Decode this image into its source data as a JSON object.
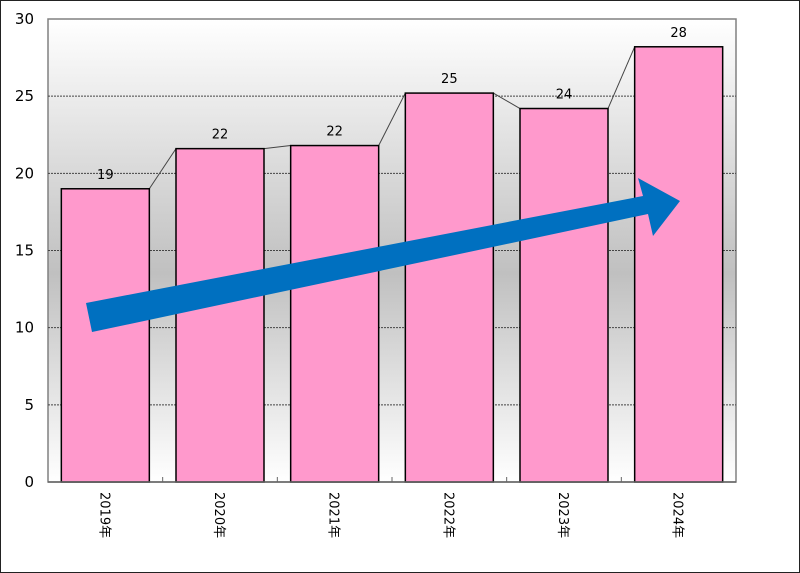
{
  "chart_data": {
    "type": "bar",
    "title": "",
    "xlabel": "",
    "ylabel": "",
    "categories": [
      "2019年",
      "2020年",
      "2021年",
      "2022年",
      "2023年",
      "2024年"
    ],
    "values": [
      19.0,
      21.6,
      21.8,
      25.2,
      24.2,
      28.2
    ],
    "data_labels": [
      "19",
      "22",
      "22",
      "25",
      "24",
      "28"
    ],
    "ylim": [
      0,
      30
    ],
    "yticks": [
      0,
      5,
      10,
      15,
      20,
      25,
      30
    ],
    "grid": "horizontal dashed",
    "legend": null,
    "series_lines": "connector lines between bar tops",
    "annotations": [
      "upward trend arrow (blue)"
    ],
    "colors": {
      "bar": "#FF99CC",
      "arrow": "#0070C0",
      "plot_bg_top": "#FFFFFF",
      "plot_bg_mid": "#C0C0C0"
    }
  }
}
